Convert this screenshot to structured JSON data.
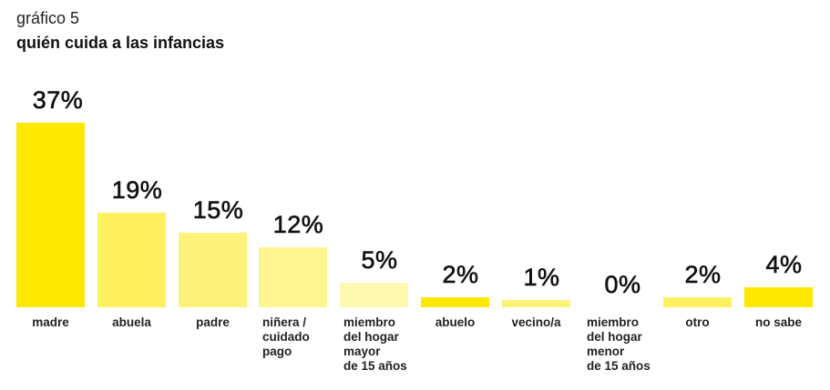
{
  "header": {
    "subtitle": "gráfico 5",
    "title": "quién cuida a las infancias"
  },
  "chart_data": {
    "type": "bar",
    "title": "quién cuida a las infancias",
    "subtitle": "gráfico 5",
    "xlabel": "",
    "ylabel": "",
    "grid": false,
    "legend": "none",
    "categories": [
      "madre",
      "abuela",
      "padre",
      "niñera / cuidado pago",
      "miembro del hogar mayor de 15 años",
      "abuelo",
      "vecino/a",
      "miembro del hogar menor de 15 años",
      "otro",
      "no sabe"
    ],
    "values": [
      37,
      19,
      15,
      12,
      5,
      2,
      1,
      0,
      2,
      4
    ],
    "value_labels": [
      "37%",
      "19%",
      "15%",
      "12%",
      "5%",
      "2%",
      "1%",
      "0%",
      "2%",
      "4%"
    ],
    "display_labels": [
      "madre",
      "abuela",
      "padre",
      "niñera /\ncuidado\npago",
      "miembro\ndel hogar\nmayor\nde 15 años",
      "abuelo",
      "vecino/a",
      "miembro\ndel hogar\nmenor\nde 15 años",
      "otro",
      "no sabe"
    ],
    "colors": [
      "#ffe800",
      "#fff060",
      "#fff27a",
      "#fff590",
      "#fff8b0",
      "#ffe800",
      "#fff27a",
      "#fff8b0",
      "#fff060",
      "#ffe800"
    ],
    "ylim": [
      0,
      37
    ]
  }
}
